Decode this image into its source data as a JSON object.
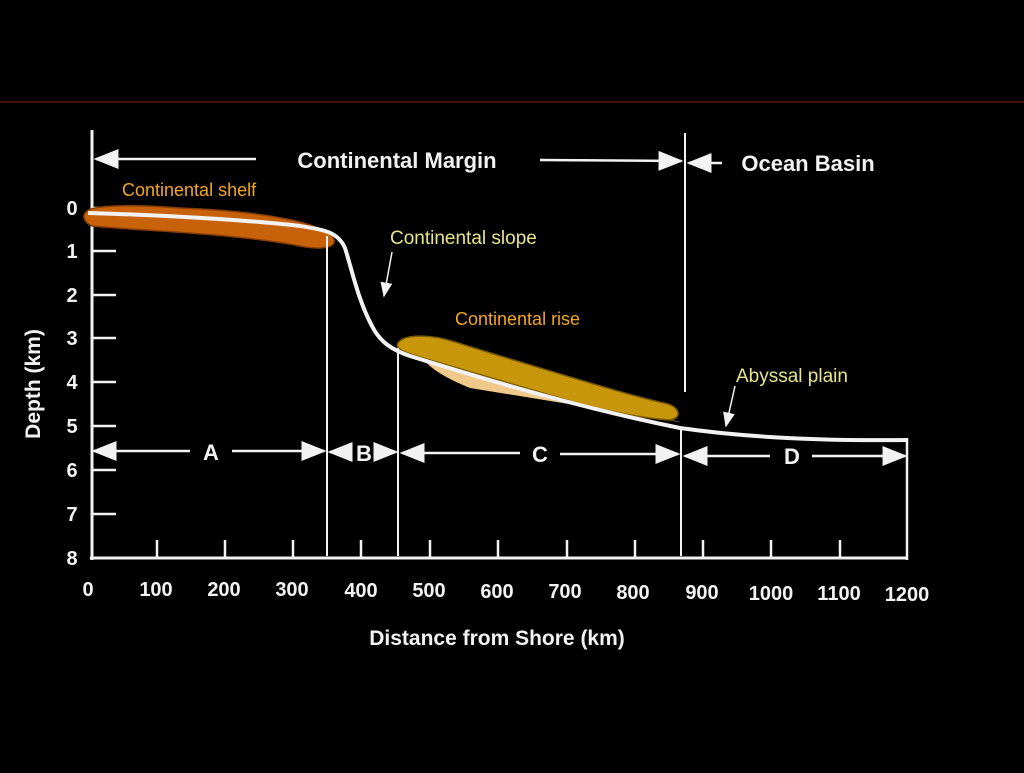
{
  "colors": {
    "background": "#000000",
    "divider": "#5a1a10",
    "line": "#f2f2f2",
    "shelf_fill": "#c8620a",
    "rise_fill": "#c8960a",
    "rise_highlight": "#f0c88a",
    "label_orange": "#f5a623",
    "label_yellow": "#e8e48a"
  },
  "diagram": {
    "margin_label": "Continental Margin",
    "basin_label": "Ocean Basin",
    "shelf_label": "Continental shelf",
    "slope_label": "Continental slope",
    "rise_label": "Continental rise",
    "abyssal_label": "Abyssal plain",
    "zones": [
      {
        "label": "A"
      },
      {
        "label": "B"
      },
      {
        "label": "C"
      },
      {
        "label": "D"
      }
    ],
    "x_axis": {
      "label": "Distance from Shore (km)",
      "ticks": [
        "0",
        "100",
        "200",
        "300",
        "400",
        "500",
        "600",
        "700",
        "800",
        "900",
        "1000",
        "1100",
        "1200"
      ]
    },
    "y_axis": {
      "label": "Depth (km)",
      "ticks": [
        "0",
        "1",
        "2",
        "3",
        "4",
        "5",
        "6",
        "7",
        "8"
      ]
    }
  }
}
